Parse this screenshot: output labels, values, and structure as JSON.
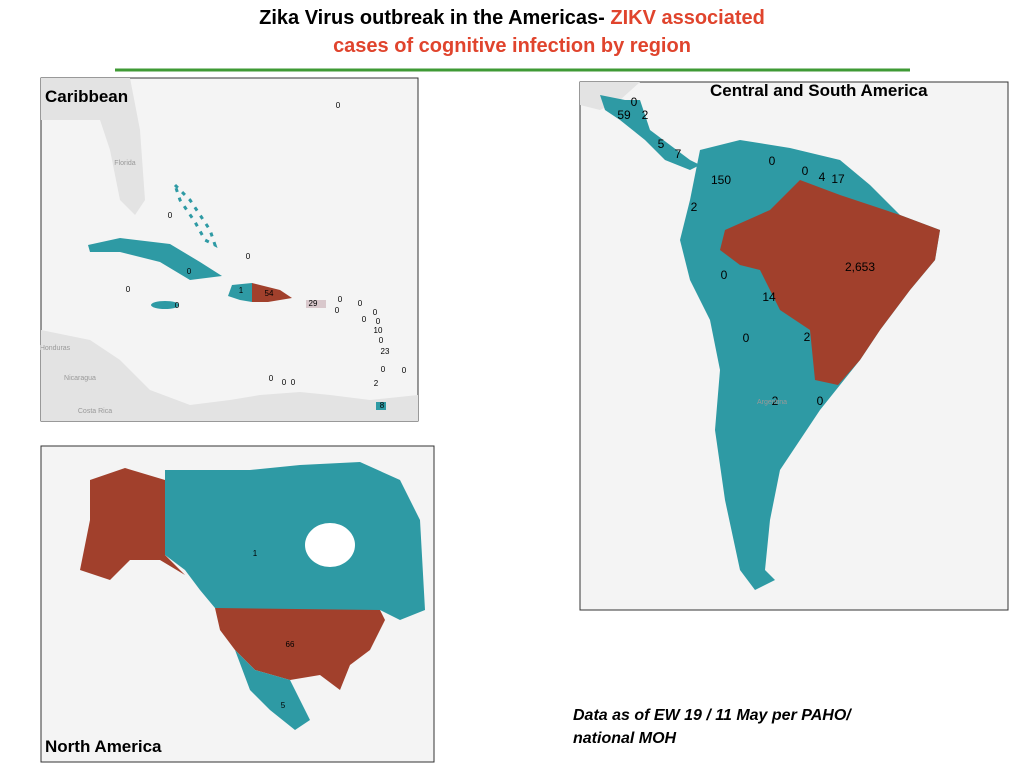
{
  "header": {
    "title_black": "Zika Virus outbreak in the Americas- ",
    "title_red_line1": "ZIKV associated",
    "title_red_line2": "cases of cognitive infection by region"
  },
  "caribbean": {
    "title": "Caribbean",
    "labels": [
      "0",
      "0",
      "0",
      "0",
      "0",
      "0",
      "1",
      "54",
      "29",
      "0",
      "0",
      "0",
      "0",
      "0",
      "0",
      "10",
      "0",
      "23",
      "0",
      "0",
      "0",
      "0",
      "0",
      "2",
      "8"
    ],
    "basemap_labels": [
      "Florida",
      "Honduras",
      "Nicaragua",
      "Costa Rica"
    ]
  },
  "central_south_america": {
    "title": "Central and South America",
    "labels": [
      "0",
      "59",
      "2",
      "5",
      "7",
      "0",
      "0",
      "4",
      "17",
      "150",
      "2",
      "2,653",
      "0",
      "14",
      "0",
      "2",
      "2",
      "0"
    ],
    "basemap_labels": [
      "Argentina"
    ]
  },
  "north_america": {
    "title": "North America",
    "labels": [
      "1",
      "66",
      "5"
    ]
  },
  "footnote": {
    "line1": "Data as of EW 19 / 11 May per PAHO/",
    "line2": "national MOH"
  }
}
